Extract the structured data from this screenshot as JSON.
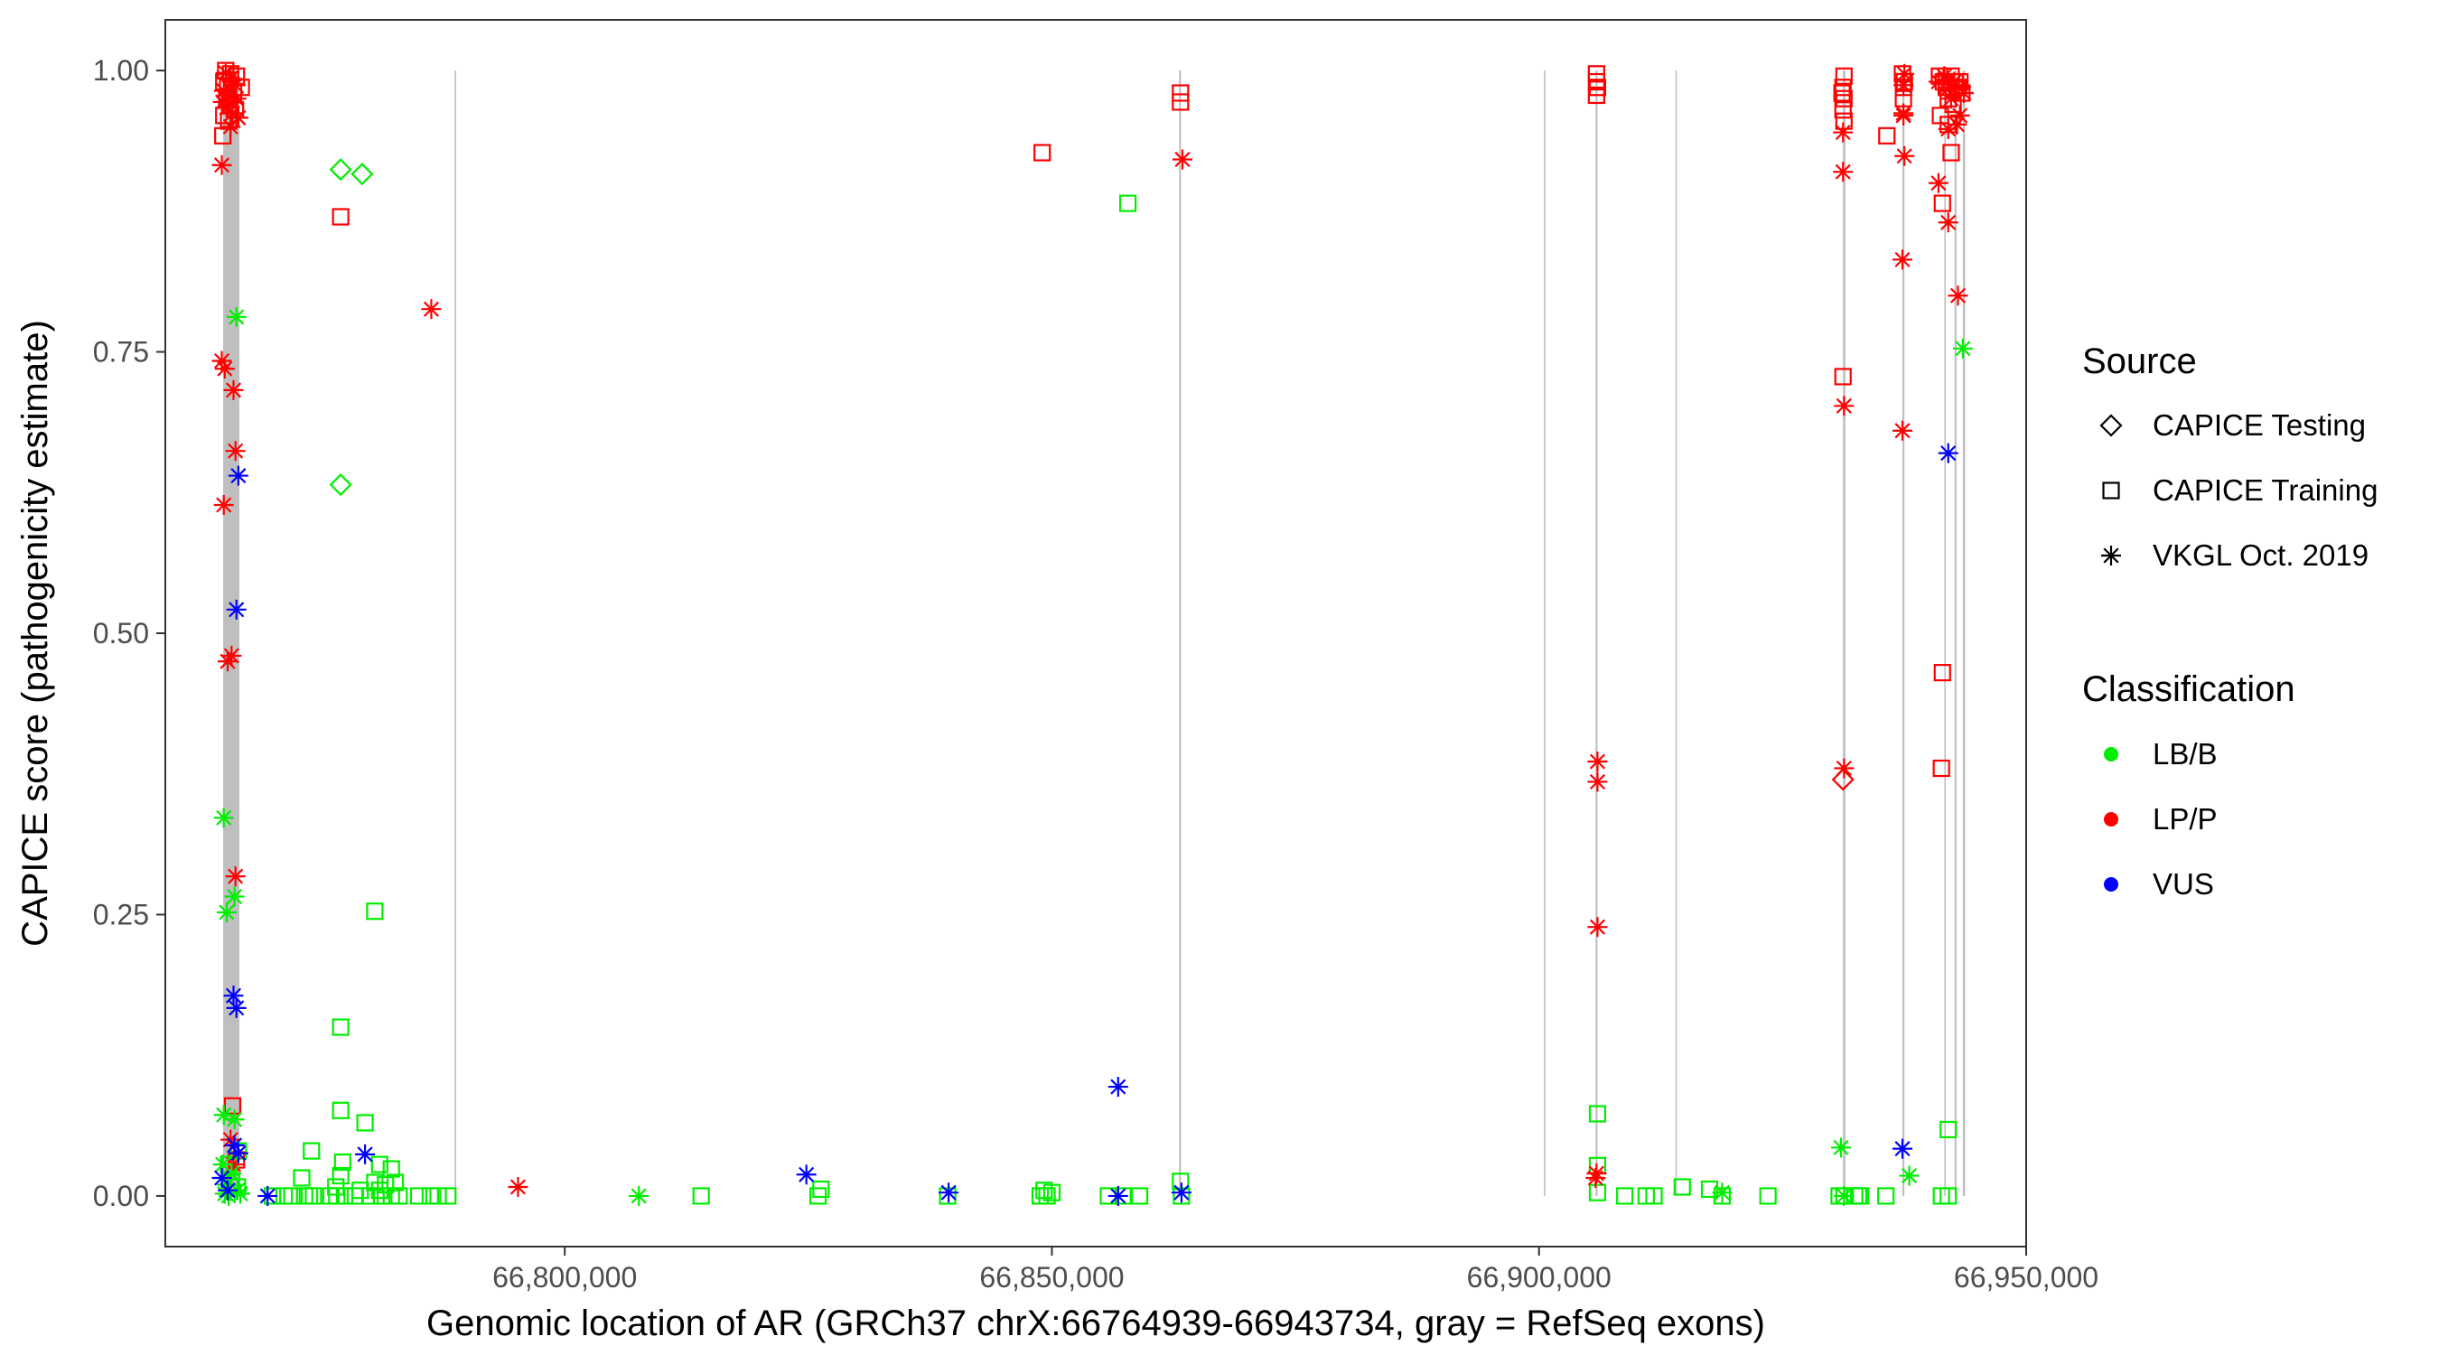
{
  "chart_data": {
    "type": "scatter",
    "xlabel": "Genomic location of AR (GRCh37 chrX:66764939-66943734, gray = RefSeq exons)",
    "ylabel": "CAPICE score (pathogenicity estimate)",
    "xlim": [
      66759000,
      66950000
    ],
    "ylim": [
      -0.045,
      1.045
    ],
    "x_ticks": [
      66800000,
      66850000,
      66900000,
      66950000
    ],
    "x_tick_labels": [
      "66,800,000",
      "66,850,000",
      "66,900,000",
      "66,950,000"
    ],
    "y_ticks": [
      0.0,
      0.25,
      0.5,
      0.75,
      1.0
    ],
    "y_tick_labels": [
      "0.00",
      "0.25",
      "0.50",
      "0.75",
      "1.00"
    ],
    "grid": false,
    "legend_placement": "right",
    "exons": [
      {
        "start": 66764939,
        "end": 66766600
      },
      {
        "start": 66788700,
        "end": 66788850
      },
      {
        "start": 66863050,
        "end": 66863250
      },
      {
        "start": 66900500,
        "end": 66900650
      },
      {
        "start": 66905800,
        "end": 66906000
      },
      {
        "start": 66914000,
        "end": 66914150
      },
      {
        "start": 66931200,
        "end": 66931450
      },
      {
        "start": 66937300,
        "end": 66937500
      },
      {
        "start": 66941600,
        "end": 66941750
      },
      {
        "start": 66942650,
        "end": 66942850
      },
      {
        "start": 66943500,
        "end": 66943734
      }
    ],
    "legend": {
      "source_title": "Source",
      "source_items": [
        {
          "label": "CAPICE Testing",
          "shape": "diamond"
        },
        {
          "label": "CAPICE Training",
          "shape": "square"
        },
        {
          "label": "VKGL Oct. 2019",
          "shape": "asterisk"
        }
      ],
      "class_title": "Classification",
      "class_items": [
        {
          "label": "LB/B",
          "color": "#00EE00"
        },
        {
          "label": "LP/P",
          "color": "#FF0000"
        },
        {
          "label": "VUS",
          "color": "#0000FF"
        }
      ]
    },
    "series": [
      {
        "shape": "diamond",
        "cls": "LB/B",
        "points": [
          [
            66777000,
            0.912
          ],
          [
            66779200,
            0.908
          ],
          [
            66777000,
            0.632
          ]
        ]
      },
      {
        "shape": "diamond",
        "cls": "LP/P",
        "points": [
          [
            66931200,
            0.37
          ]
        ]
      },
      {
        "shape": "square",
        "cls": "LP/P",
        "points": [
          [
            66765200,
            1.0
          ],
          [
            66765700,
            0.997
          ],
          [
            66766300,
            0.995
          ],
          [
            66765000,
            0.99
          ],
          [
            66765400,
            0.985
          ],
          [
            66766000,
            0.98
          ],
          [
            66765300,
            0.975
          ],
          [
            66765600,
            0.97
          ],
          [
            66766200,
            0.965
          ],
          [
            66765000,
            0.96
          ],
          [
            66765500,
            0.955
          ],
          [
            66764900,
            0.942
          ],
          [
            66766800,
            0.985
          ],
          [
            66777000,
            0.87
          ],
          [
            66765900,
            0.08
          ],
          [
            66766300,
            0.032
          ],
          [
            66849000,
            0.927
          ],
          [
            66863200,
            0.98
          ],
          [
            66863200,
            0.972
          ],
          [
            66905900,
            0.997
          ],
          [
            66905900,
            0.99
          ],
          [
            66906000,
            0.985
          ],
          [
            66905900,
            0.978
          ],
          [
            66931300,
            0.995
          ],
          [
            66931200,
            0.985
          ],
          [
            66931100,
            0.98
          ],
          [
            66931300,
            0.975
          ],
          [
            66931200,
            0.965
          ],
          [
            66931300,
            0.955
          ],
          [
            66931200,
            0.728
          ],
          [
            66935700,
            0.942
          ],
          [
            66937300,
            0.997
          ],
          [
            66937500,
            0.99
          ],
          [
            66937400,
            0.985
          ],
          [
            66937400,
            0.975
          ],
          [
            66941100,
            0.995
          ],
          [
            66941500,
            0.99
          ],
          [
            66941800,
            0.985
          ],
          [
            66942300,
            0.995
          ],
          [
            66942700,
            0.99
          ],
          [
            66943000,
            0.985
          ],
          [
            66943400,
            0.98
          ],
          [
            66942000,
            0.975
          ],
          [
            66942500,
            0.97
          ],
          [
            66943200,
            0.99
          ],
          [
            66941200,
            0.96
          ],
          [
            66942000,
            0.952
          ],
          [
            66942300,
            0.927
          ],
          [
            66941400,
            0.882
          ],
          [
            66941400,
            0.465
          ],
          [
            66941300,
            0.38
          ]
        ]
      },
      {
        "shape": "square",
        "cls": "LB/B",
        "points": [
          [
            66770000,
            0.0
          ],
          [
            66771200,
            0.0
          ],
          [
            66772000,
            0.0
          ],
          [
            66773300,
            0.0
          ],
          [
            66773800,
            0.0
          ],
          [
            66774200,
            0.0
          ],
          [
            66776000,
            0.0
          ],
          [
            66776600,
            0.0
          ],
          [
            66777400,
            0.0
          ],
          [
            66778500,
            0.0
          ],
          [
            66780000,
            0.0
          ],
          [
            66781200,
            0.0
          ],
          [
            66782200,
            0.0
          ],
          [
            66783000,
            0.0
          ],
          [
            66785000,
            0.0
          ],
          [
            66786200,
            0.0
          ],
          [
            66787000,
            0.0
          ],
          [
            66788000,
            0.0
          ],
          [
            66773000,
            0.016
          ],
          [
            66774000,
            0.04
          ],
          [
            66776500,
            0.008
          ],
          [
            66777000,
            0.018
          ],
          [
            66777200,
            0.03
          ],
          [
            66779000,
            0.005
          ],
          [
            66780500,
            0.012
          ],
          [
            66781000,
            0.028
          ],
          [
            66781600,
            0.01
          ],
          [
            66782200,
            0.024
          ],
          [
            66782600,
            0.012
          ],
          [
            66781000,
            0.005
          ],
          [
            66780500,
            0.253
          ],
          [
            66777000,
            0.15
          ],
          [
            66777000,
            0.076
          ],
          [
            66779500,
            0.065
          ],
          [
            66766400,
            0.008
          ],
          [
            66765800,
            0.012
          ],
          [
            66766500,
            0.04
          ],
          [
            66765500,
            0.028
          ],
          [
            66814000,
            0.0
          ],
          [
            66826000,
            0.0
          ],
          [
            66826300,
            0.006
          ],
          [
            66839300,
            0.0
          ],
          [
            66848800,
            0.0
          ],
          [
            66849200,
            0.005
          ],
          [
            66849500,
            0.0
          ],
          [
            66850000,
            0.003
          ],
          [
            66855800,
            0.0
          ],
          [
            66857300,
            0.0
          ],
          [
            66859000,
            0.0
          ],
          [
            66863200,
            0.013
          ],
          [
            66863300,
            0.0
          ],
          [
            66857800,
            0.882
          ],
          [
            66906000,
            0.073
          ],
          [
            66906000,
            0.027
          ],
          [
            66906000,
            0.003
          ],
          [
            66908800,
            0.0
          ],
          [
            66911000,
            0.0
          ],
          [
            66911800,
            0.0
          ],
          [
            66914700,
            0.008
          ],
          [
            66917500,
            0.006
          ],
          [
            66918800,
            0.0
          ],
          [
            66923500,
            0.0
          ],
          [
            66930800,
            0.0
          ],
          [
            66931300,
            0.0
          ],
          [
            66932400,
            0.0
          ],
          [
            66932800,
            0.0
          ],
          [
            66933000,
            0.0
          ],
          [
            66935600,
            0.0
          ],
          [
            66941300,
            0.0
          ],
          [
            66942000,
            0.0
          ],
          [
            66942000,
            0.059
          ]
        ]
      },
      {
        "shape": "asterisk",
        "cls": "LP/P",
        "points": [
          [
            66765200,
            0.998
          ],
          [
            66765700,
            0.993
          ],
          [
            66766200,
            0.987
          ],
          [
            66765000,
            0.982
          ],
          [
            66765500,
            0.978
          ],
          [
            66766300,
            0.975
          ],
          [
            66764900,
            0.972
          ],
          [
            66765300,
            0.967
          ],
          [
            66765900,
            0.962
          ],
          [
            66766500,
            0.958
          ],
          [
            66765700,
            0.95
          ],
          [
            66764800,
            0.916
          ],
          [
            66764800,
            0.742
          ],
          [
            66765100,
            0.735
          ],
          [
            66766000,
            0.716
          ],
          [
            66766200,
            0.662
          ],
          [
            66765000,
            0.614
          ],
          [
            66765800,
            0.48
          ],
          [
            66765400,
            0.475
          ],
          [
            66766200,
            0.284
          ],
          [
            66765700,
            0.05
          ],
          [
            66766000,
            0.028
          ],
          [
            66786300,
            0.788
          ],
          [
            66795200,
            0.008
          ],
          [
            66863400,
            0.921
          ],
          [
            66906000,
            0.386
          ],
          [
            66906000,
            0.368
          ],
          [
            66906000,
            0.239
          ],
          [
            66905900,
            0.02
          ],
          [
            66905800,
            0.016
          ],
          [
            66931200,
            0.945
          ],
          [
            66931200,
            0.91
          ],
          [
            66931300,
            0.702
          ],
          [
            66931300,
            0.38
          ],
          [
            66937500,
            0.997
          ],
          [
            66937400,
            0.987
          ],
          [
            66937400,
            0.96
          ],
          [
            66937500,
            0.924
          ],
          [
            66937300,
            0.832
          ],
          [
            66937300,
            0.68
          ],
          [
            66937400,
            0.962
          ],
          [
            66941000,
            0.99
          ],
          [
            66941600,
            0.995
          ],
          [
            66942100,
            0.985
          ],
          [
            66942600,
            0.99
          ],
          [
            66943100,
            0.985
          ],
          [
            66943600,
            0.98
          ],
          [
            66942300,
            0.975
          ],
          [
            66943200,
            0.96
          ],
          [
            66942000,
            0.948
          ],
          [
            66942900,
            0.952
          ],
          [
            66941000,
            0.9
          ],
          [
            66942000,
            0.865
          ],
          [
            66943000,
            0.8
          ]
        ]
      },
      {
        "shape": "asterisk",
        "cls": "LB/B",
        "points": [
          [
            66766300,
            0.781
          ],
          [
            66765000,
            0.336
          ],
          [
            66766100,
            0.266
          ],
          [
            66765300,
            0.252
          ],
          [
            66765000,
            0.072
          ],
          [
            66766100,
            0.068
          ],
          [
            66764900,
            0.028
          ],
          [
            66765800,
            0.02
          ],
          [
            66765300,
            0.01
          ],
          [
            66766400,
            0.005
          ],
          [
            66765500,
            0.0
          ],
          [
            66766700,
            0.002
          ],
          [
            66765100,
            0.002
          ],
          [
            66807600,
            0.0
          ],
          [
            66918800,
            0.003
          ],
          [
            66931000,
            0.043
          ],
          [
            66931300,
            0.0
          ],
          [
            66938000,
            0.018
          ],
          [
            66943500,
            0.753
          ]
        ]
      },
      {
        "shape": "asterisk",
        "cls": "VUS",
        "points": [
          [
            66766500,
            0.64
          ],
          [
            66766300,
            0.521
          ],
          [
            66766000,
            0.178
          ],
          [
            66766300,
            0.167
          ],
          [
            66766100,
            0.045
          ],
          [
            66766500,
            0.038
          ],
          [
            66764800,
            0.016
          ],
          [
            66765400,
            0.005
          ],
          [
            66769500,
            0.0
          ],
          [
            66779500,
            0.037
          ],
          [
            66824800,
            0.019
          ],
          [
            66839400,
            0.003
          ],
          [
            66856800,
            0.097
          ],
          [
            66856800,
            0.0
          ],
          [
            66863300,
            0.003
          ],
          [
            66937300,
            0.042
          ],
          [
            66942000,
            0.66
          ]
        ]
      }
    ]
  }
}
